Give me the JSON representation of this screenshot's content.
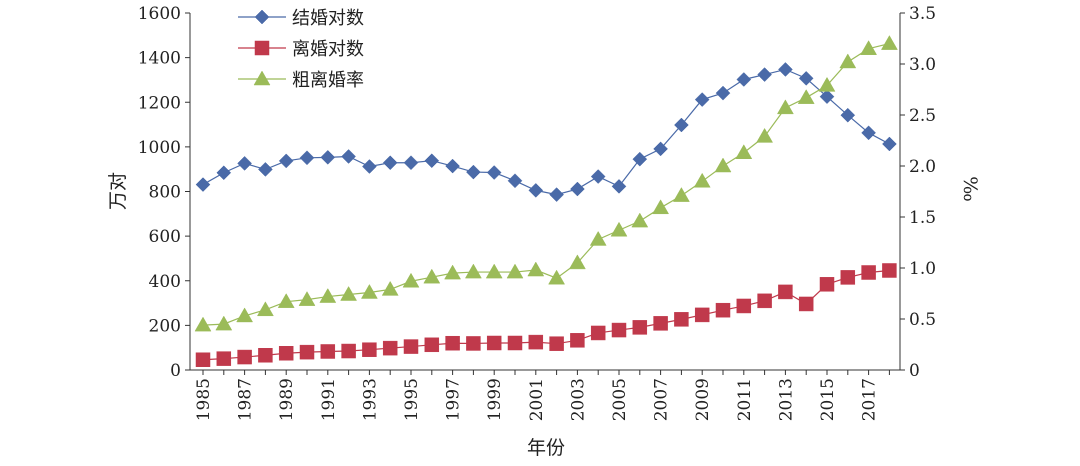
{
  "chart_data": {
    "type": "line",
    "title": "",
    "xlabel": "年份",
    "ylabel_left": "万对",
    "ylabel_right": "‰",
    "ylim_left": [
      0,
      1600
    ],
    "ylim_right": [
      0,
      3.5
    ],
    "yticks_left": [
      "0",
      "200",
      "400",
      "600",
      "800",
      "1000",
      "1200",
      "1400",
      "1600"
    ],
    "yticks_right": [
      "0",
      "0.5",
      "1.0",
      "1.5",
      "2.0",
      "2.5",
      "3.0",
      "3.5"
    ],
    "x": [
      1985,
      1986,
      1987,
      1988,
      1989,
      1990,
      1991,
      1992,
      1993,
      1994,
      1995,
      1996,
      1997,
      1998,
      1999,
      2000,
      2001,
      2002,
      2003,
      2004,
      2005,
      2006,
      2007,
      2008,
      2009,
      2010,
      2011,
      2012,
      2013,
      2014,
      2015,
      2016,
      2017,
      2018
    ],
    "xtick_labels": [
      "1985",
      "1987",
      "1989",
      "1991",
      "1993",
      "1995",
      "1997",
      "1999",
      "2001",
      "2003",
      "2005",
      "2007",
      "2009",
      "2011",
      "2013",
      "2015",
      "2017"
    ],
    "legend_position": "top-left",
    "grid": false,
    "colors": {
      "marriage": "#4a6aa8",
      "divorce": "#c0394b",
      "rate": "#9bbb59",
      "axis": "#333333"
    },
    "series": [
      {
        "name": "结婚对数",
        "axis": "left",
        "marker": "diamond",
        "values": [
          831,
          884,
          926,
          899,
          937,
          951,
          953,
          957,
          912,
          929,
          929,
          938,
          914,
          887,
          885,
          848,
          805,
          786,
          811,
          867,
          823,
          945,
          991,
          1098,
          1212,
          1241,
          1302,
          1324,
          1347,
          1307,
          1225,
          1142,
          1063,
          1013
        ]
      },
      {
        "name": "离婚对数",
        "axis": "left",
        "marker": "square",
        "values": [
          46,
          51,
          58,
          66,
          75,
          80,
          83,
          85,
          91,
          98,
          105,
          113,
          120,
          119,
          121,
          121,
          125,
          118,
          133,
          166,
          179,
          191,
          209,
          227,
          247,
          268,
          287,
          310,
          350,
          296,
          384,
          415,
          437,
          446
        ]
      },
      {
        "name": "粗离婚率",
        "axis": "right",
        "marker": "triangle",
        "values": [
          0.44,
          0.45,
          0.53,
          0.59,
          0.67,
          0.69,
          0.72,
          0.74,
          0.76,
          0.79,
          0.87,
          0.91,
          0.95,
          0.96,
          0.96,
          0.96,
          0.98,
          0.9,
          1.05,
          1.28,
          1.37,
          1.46,
          1.59,
          1.71,
          1.85,
          2.0,
          2.13,
          2.29,
          2.57,
          2.67,
          2.79,
          3.02,
          3.15,
          3.2
        ]
      }
    ]
  }
}
